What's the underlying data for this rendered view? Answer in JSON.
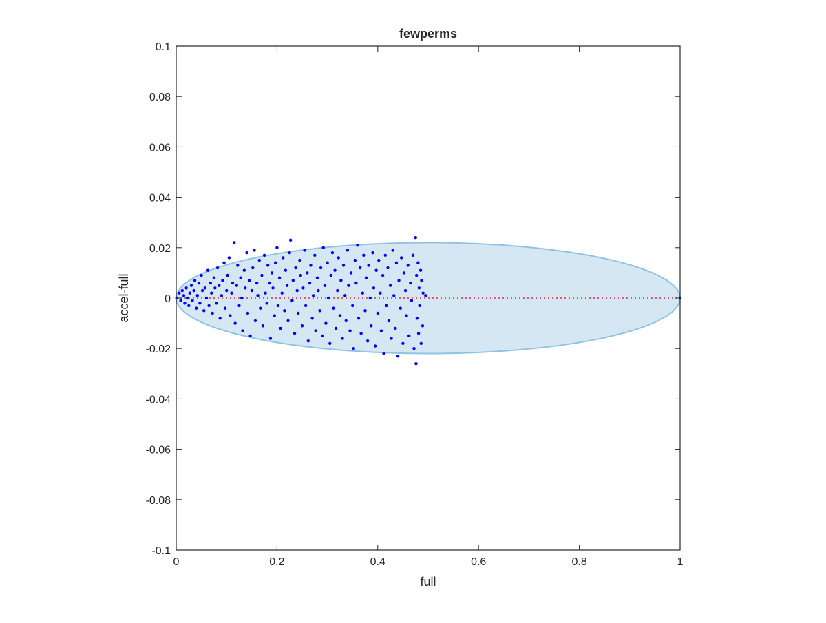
{
  "chart_data": {
    "type": "scatter",
    "title": "fewperms",
    "xlabel": "full",
    "ylabel": "accel-full",
    "xlim": [
      0,
      1
    ],
    "ylim": [
      -0.1,
      0.1
    ],
    "x_ticks": [
      "0",
      "0.2",
      "0.4",
      "0.6",
      "0.8",
      "1"
    ],
    "x_tick_values": [
      0,
      0.2,
      0.4,
      0.6,
      0.8,
      1
    ],
    "y_ticks": [
      "-0.1",
      "-0.08",
      "-0.06",
      "-0.04",
      "-0.02",
      "0",
      "0.02",
      "0.04",
      "0.06",
      "0.08",
      "0.1"
    ],
    "y_tick_values": [
      -0.1,
      -0.08,
      -0.06,
      -0.04,
      -0.02,
      0,
      0.02,
      0.04,
      0.06,
      0.08,
      0.1
    ],
    "grid": false,
    "ellipse": {
      "x_range": [
        0,
        1
      ],
      "y_half_height": 0.022,
      "fill": "#d6e7f4",
      "edge": "#8fc3e3"
    },
    "reference_line": {
      "x": [
        0,
        1
      ],
      "y": 0,
      "color": "#e03030",
      "style": "dotted"
    },
    "marker_color": "#0000ff",
    "points": [
      [
        0.001,
        0.0
      ],
      [
        0.006,
        0.002
      ],
      [
        0.009,
        -0.001
      ],
      [
        0.012,
        0.003
      ],
      [
        0.015,
        0.001
      ],
      [
        0.017,
        -0.002
      ],
      [
        0.02,
        0.004
      ],
      [
        0.022,
        0.0
      ],
      [
        0.025,
        -0.003
      ],
      [
        0.027,
        0.002
      ],
      [
        0.03,
        0.005
      ],
      [
        0.032,
        -0.001
      ],
      [
        0.035,
        0.003
      ],
      [
        0.037,
        0.007
      ],
      [
        0.04,
        -0.004
      ],
      [
        0.042,
        0.001
      ],
      [
        0.045,
        0.006
      ],
      [
        0.047,
        -0.002
      ],
      [
        0.05,
        0.009
      ],
      [
        0.052,
        0.003
      ],
      [
        0.055,
        -0.005
      ],
      [
        0.057,
        0.004
      ],
      [
        0.06,
        0.0
      ],
      [
        0.063,
        0.011
      ],
      [
        0.065,
        -0.003
      ],
      [
        0.068,
        0.006
      ],
      [
        0.07,
        0.002
      ],
      [
        0.072,
        -0.006
      ],
      [
        0.075,
        0.008
      ],
      [
        0.077,
        0.004
      ],
      [
        0.08,
        -0.002
      ],
      [
        0.082,
        0.012
      ],
      [
        0.085,
        0.005
      ],
      [
        0.087,
        -0.008
      ],
      [
        0.09,
        0.001
      ],
      [
        0.092,
        0.007
      ],
      [
        0.095,
        0.014
      ],
      [
        0.097,
        -0.004
      ],
      [
        0.1,
        0.003
      ],
      [
        0.102,
        0.009
      ],
      [
        0.105,
        0.016
      ],
      [
        0.107,
        -0.007
      ],
      [
        0.11,
        0.002
      ],
      [
        0.112,
        0.006
      ],
      [
        0.115,
        0.022
      ],
      [
        0.117,
        -0.01
      ],
      [
        0.12,
        0.005
      ],
      [
        0.122,
        0.013
      ],
      [
        0.125,
        -0.003
      ],
      [
        0.128,
        0.008
      ],
      [
        0.13,
        0.0
      ],
      [
        0.132,
        -0.013
      ],
      [
        0.135,
        0.011
      ],
      [
        0.137,
        0.004
      ],
      [
        0.14,
        0.018
      ],
      [
        0.142,
        -0.006
      ],
      [
        0.145,
        0.007
      ],
      [
        0.147,
        -0.015
      ],
      [
        0.15,
        0.003
      ],
      [
        0.152,
        0.012
      ],
      [
        0.155,
        0.019
      ],
      [
        0.157,
        -0.009
      ],
      [
        0.16,
        0.006
      ],
      [
        0.162,
        0.001
      ],
      [
        0.165,
        0.015
      ],
      [
        0.167,
        -0.004
      ],
      [
        0.17,
        0.009
      ],
      [
        0.172,
        -0.011
      ],
      [
        0.175,
        0.017
      ],
      [
        0.177,
        0.002
      ],
      [
        0.18,
        -0.002
      ],
      [
        0.182,
        0.013
      ],
      [
        0.185,
        0.006
      ],
      [
        0.187,
        -0.016
      ],
      [
        0.19,
        0.01
      ],
      [
        0.192,
        0.004
      ],
      [
        0.195,
        -0.007
      ],
      [
        0.197,
        0.014
      ],
      [
        0.2,
        0.02
      ],
      [
        0.202,
        -0.003
      ],
      [
        0.205,
        0.008
      ],
      [
        0.207,
        -0.012
      ],
      [
        0.21,
        0.002
      ],
      [
        0.212,
        0.016
      ],
      [
        0.215,
        -0.005
      ],
      [
        0.217,
        0.011
      ],
      [
        0.22,
        0.005
      ],
      [
        0.222,
        -0.009
      ],
      [
        0.225,
        0.018
      ],
      [
        0.227,
        0.023
      ],
      [
        0.23,
        -0.001
      ],
      [
        0.232,
        0.007
      ],
      [
        0.235,
        -0.014
      ],
      [
        0.237,
        0.012
      ],
      [
        0.24,
        0.003
      ],
      [
        0.242,
        -0.006
      ],
      [
        0.245,
        0.015
      ],
      [
        0.247,
        0.009
      ],
      [
        0.25,
        -0.011
      ],
      [
        0.252,
        0.004
      ],
      [
        0.255,
        0.019
      ],
      [
        0.257,
        -0.003
      ],
      [
        0.26,
        0.01
      ],
      [
        0.262,
        -0.017
      ],
      [
        0.265,
        0.006
      ],
      [
        0.267,
        0.013
      ],
      [
        0.27,
        -0.008
      ],
      [
        0.272,
        0.001
      ],
      [
        0.275,
        0.017
      ],
      [
        0.277,
        -0.013
      ],
      [
        0.28,
        0.008
      ],
      [
        0.282,
        0.003
      ],
      [
        0.285,
        -0.005
      ],
      [
        0.287,
        0.012
      ],
      [
        0.29,
        -0.015
      ],
      [
        0.292,
        0.02
      ],
      [
        0.295,
        0.005
      ],
      [
        0.297,
        -0.01
      ],
      [
        0.3,
        0.014
      ],
      [
        0.302,
        0.0
      ],
      [
        0.305,
        -0.018
      ],
      [
        0.307,
        0.009
      ],
      [
        0.31,
        0.018
      ],
      [
        0.312,
        -0.004
      ],
      [
        0.315,
        0.011
      ],
      [
        0.317,
        -0.012
      ],
      [
        0.32,
        0.003
      ],
      [
        0.322,
        0.016
      ],
      [
        0.325,
        -0.007
      ],
      [
        0.327,
        0.007
      ],
      [
        0.33,
        -0.016
      ],
      [
        0.332,
        0.013
      ],
      [
        0.335,
        0.001
      ],
      [
        0.337,
        -0.009
      ],
      [
        0.34,
        0.019
      ],
      [
        0.342,
        0.005
      ],
      [
        0.345,
        -0.013
      ],
      [
        0.347,
        0.01
      ],
      [
        0.35,
        -0.003
      ],
      [
        0.352,
        -0.02
      ],
      [
        0.355,
        0.015
      ],
      [
        0.357,
        0.006
      ],
      [
        0.36,
        0.021
      ],
      [
        0.362,
        -0.008
      ],
      [
        0.365,
        0.012
      ],
      [
        0.367,
        -0.014
      ],
      [
        0.37,
        0.002
      ],
      [
        0.372,
        0.017
      ],
      [
        0.375,
        -0.005
      ],
      [
        0.377,
        0.008
      ],
      [
        0.38,
        -0.017
      ],
      [
        0.382,
        0.013
      ],
      [
        0.385,
        0.0
      ],
      [
        0.387,
        -0.011
      ],
      [
        0.39,
        0.018
      ],
      [
        0.392,
        0.004
      ],
      [
        0.395,
        -0.019
      ],
      [
        0.397,
        0.011
      ],
      [
        0.4,
        -0.006
      ],
      [
        0.402,
        0.015
      ],
      [
        0.405,
        0.002
      ],
      [
        0.407,
        -0.013
      ],
      [
        0.41,
        0.009
      ],
      [
        0.412,
        -0.022
      ],
      [
        0.415,
        0.017
      ],
      [
        0.417,
        -0.003
      ],
      [
        0.42,
        0.012
      ],
      [
        0.422,
        -0.009
      ],
      [
        0.425,
        0.005
      ],
      [
        0.427,
        -0.016
      ],
      [
        0.43,
        0.019
      ],
      [
        0.432,
        0.001
      ],
      [
        0.435,
        -0.012
      ],
      [
        0.437,
        0.014
      ],
      [
        0.44,
        -0.023
      ],
      [
        0.442,
        0.007
      ],
      [
        0.445,
        -0.004
      ],
      [
        0.447,
        0.016
      ],
      [
        0.45,
        -0.018
      ],
      [
        0.452,
        0.01
      ],
      [
        0.455,
        0.003
      ],
      [
        0.457,
        -0.007
      ],
      [
        0.46,
        0.013
      ],
      [
        0.462,
        -0.015
      ],
      [
        0.465,
        0.006
      ],
      [
        0.467,
        -0.001
      ],
      [
        0.47,
        0.017
      ],
      [
        0.472,
        -0.02
      ],
      [
        0.475,
        0.024
      ],
      [
        0.476,
        -0.026
      ],
      [
        0.477,
        0.009
      ],
      [
        0.478,
        -0.008
      ],
      [
        0.48,
        0.014
      ],
      [
        0.481,
        -0.014
      ],
      [
        0.482,
        0.004
      ],
      [
        0.483,
        -0.003
      ],
      [
        0.485,
        0.011
      ],
      [
        0.486,
        -0.018
      ],
      [
        0.487,
        0.007
      ],
      [
        0.489,
        -0.011
      ],
      [
        0.49,
        0.002
      ],
      [
        0.495,
        0.001
      ],
      [
        1.0,
        0.0
      ]
    ]
  }
}
